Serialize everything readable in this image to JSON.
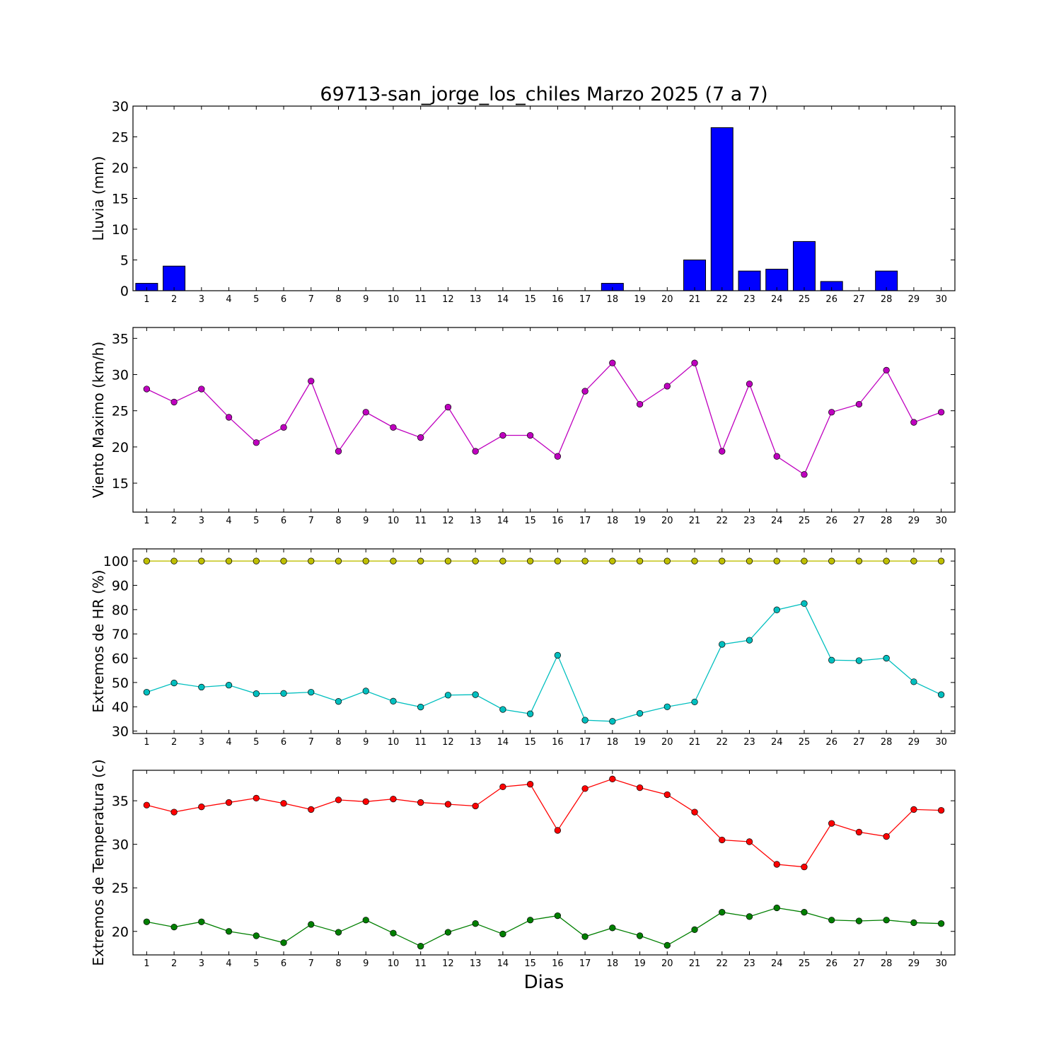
{
  "figure": {
    "title": "69713-san_jorge_los_chiles Marzo 2025  (7 a 7)",
    "xlabel": "Dias"
  },
  "chart_data": [
    {
      "type": "bar",
      "ylabel": "Lluvia (mm)",
      "xlim": [
        0.5,
        30.5
      ],
      "ylim": [
        0,
        30
      ],
      "yticks": [
        0,
        5,
        10,
        15,
        20,
        25,
        30
      ],
      "categories": [
        1,
        2,
        3,
        4,
        5,
        6,
        7,
        8,
        9,
        10,
        11,
        12,
        13,
        14,
        15,
        16,
        17,
        18,
        19,
        20,
        21,
        22,
        23,
        24,
        25,
        26,
        27,
        28,
        29,
        30
      ],
      "series": [
        {
          "color": "#0000ff",
          "values": [
            1.2,
            4.0,
            0,
            0,
            0,
            0,
            0,
            0,
            0,
            0,
            0,
            0,
            0,
            0,
            0,
            0,
            0,
            1.2,
            0,
            0,
            5.0,
            26.5,
            3.2,
            3.5,
            8.0,
            1.5,
            0,
            3.2,
            0,
            0
          ]
        }
      ]
    },
    {
      "type": "line",
      "ylabel": "Viento Maximo (km/h)",
      "xlim": [
        0.5,
        30.5
      ],
      "ylim": [
        11,
        36.5
      ],
      "yticks": [
        15,
        20,
        25,
        30,
        35
      ],
      "x": [
        1,
        2,
        3,
        4,
        5,
        6,
        7,
        8,
        9,
        10,
        11,
        12,
        13,
        14,
        15,
        16,
        17,
        18,
        19,
        20,
        21,
        22,
        23,
        24,
        25,
        26,
        27,
        28,
        29,
        30
      ],
      "series": [
        {
          "color": "#bf00bf",
          "values": [
            28.0,
            26.2,
            28.0,
            24.1,
            20.6,
            22.7,
            29.1,
            19.4,
            24.8,
            22.7,
            21.3,
            25.5,
            19.4,
            21.6,
            21.6,
            18.7,
            27.7,
            31.6,
            25.9,
            28.4,
            31.6,
            19.4,
            28.7,
            18.7,
            16.2,
            24.8,
            25.9,
            30.6,
            23.4,
            24.8
          ]
        }
      ]
    },
    {
      "type": "line",
      "ylabel": "Extremos de HR (%)",
      "xlim": [
        0.5,
        30.5
      ],
      "ylim": [
        29,
        105
      ],
      "yticks": [
        30,
        40,
        50,
        60,
        70,
        80,
        90,
        100
      ],
      "x": [
        1,
        2,
        3,
        4,
        5,
        6,
        7,
        8,
        9,
        10,
        11,
        12,
        13,
        14,
        15,
        16,
        17,
        18,
        19,
        20,
        21,
        22,
        23,
        24,
        25,
        26,
        27,
        28,
        29,
        30
      ],
      "series": [
        {
          "color": "#bfbf00",
          "values": [
            100,
            100,
            100,
            100,
            100,
            100,
            100,
            100,
            100,
            100,
            100,
            100,
            100,
            100,
            100,
            100,
            100,
            100,
            100,
            100,
            100,
            100,
            100,
            100,
            100,
            100,
            100,
            100,
            100,
            100
          ]
        },
        {
          "color": "#00bfbf",
          "values": [
            46.0,
            49.8,
            48.1,
            48.9,
            45.4,
            45.5,
            46.0,
            42.2,
            46.5,
            42.3,
            39.9,
            44.8,
            45.0,
            38.9,
            37.1,
            61.2,
            34.5,
            34.0,
            37.3,
            40.0,
            42.0,
            65.7,
            67.4,
            79.9,
            82.5,
            59.2,
            59.0,
            60.0,
            50.3,
            45.0
          ]
        }
      ]
    },
    {
      "type": "line",
      "ylabel": "Extremos de Temperatura (c)",
      "xlim": [
        0.5,
        30.5
      ],
      "ylim": [
        17.3,
        38.5
      ],
      "yticks": [
        20,
        25,
        30,
        35
      ],
      "x": [
        1,
        2,
        3,
        4,
        5,
        6,
        7,
        8,
        9,
        10,
        11,
        12,
        13,
        14,
        15,
        16,
        17,
        18,
        19,
        20,
        21,
        22,
        23,
        24,
        25,
        26,
        27,
        28,
        29,
        30
      ],
      "series": [
        {
          "color": "#ff0000",
          "values": [
            34.5,
            33.7,
            34.3,
            34.8,
            35.3,
            34.7,
            34.0,
            35.1,
            34.9,
            35.2,
            34.8,
            34.6,
            34.4,
            36.6,
            36.9,
            31.6,
            36.4,
            37.5,
            36.5,
            35.7,
            33.7,
            30.5,
            30.3,
            27.7,
            27.4,
            32.4,
            31.4,
            30.9,
            34.0,
            33.9
          ]
        },
        {
          "color": "#007f00",
          "values": [
            21.1,
            20.5,
            21.1,
            20.0,
            19.5,
            18.7,
            20.8,
            19.9,
            21.3,
            19.8,
            18.3,
            19.9,
            20.9,
            19.7,
            21.3,
            21.8,
            19.4,
            20.4,
            19.5,
            18.4,
            20.2,
            22.2,
            21.7,
            22.7,
            22.2,
            21.3,
            21.2,
            21.3,
            21.0,
            20.9
          ]
        }
      ]
    }
  ]
}
